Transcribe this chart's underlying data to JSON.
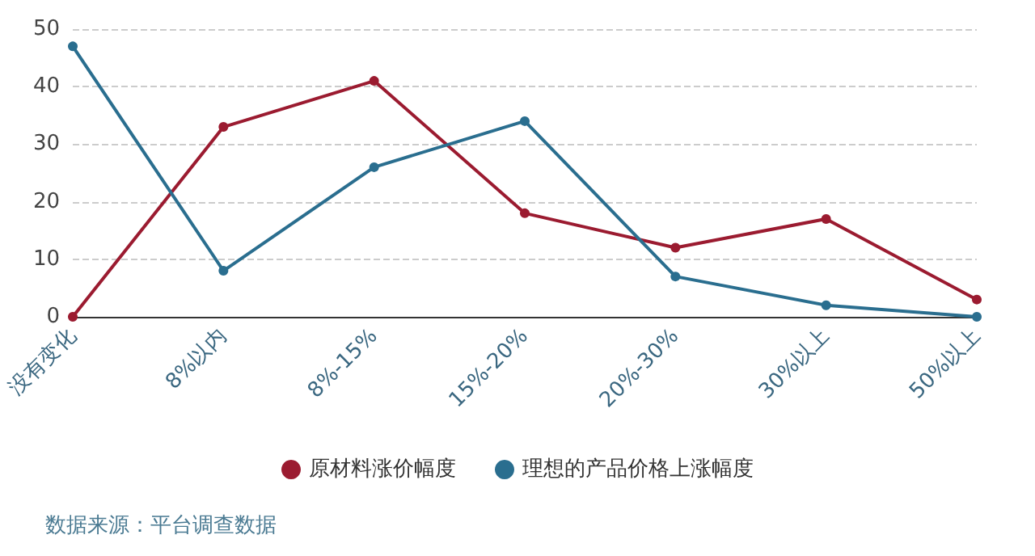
{
  "chart_data": {
    "type": "line",
    "categories": [
      "没有变化",
      "8%以内",
      "8%-15%",
      "15%-20%",
      "20%-30%",
      "30%以上",
      "50%以上"
    ],
    "series": [
      {
        "name": "原材料涨价幅度",
        "color": "#9b1b30",
        "values": [
          0,
          33,
          41,
          18,
          12,
          17,
          3
        ]
      },
      {
        "name": "理想的产品价格上涨幅度",
        "color": "#2a6e8f",
        "values": [
          47,
          8,
          26,
          34,
          7,
          2,
          0
        ]
      }
    ],
    "ylim": [
      0,
      50
    ],
    "yticks": [
      0,
      10,
      20,
      30,
      40,
      50
    ],
    "grid": "y",
    "legend": "bottom",
    "marker": "circle",
    "line_style": "solid",
    "annotations": [
      "数据来源：平台调查数据"
    ]
  }
}
